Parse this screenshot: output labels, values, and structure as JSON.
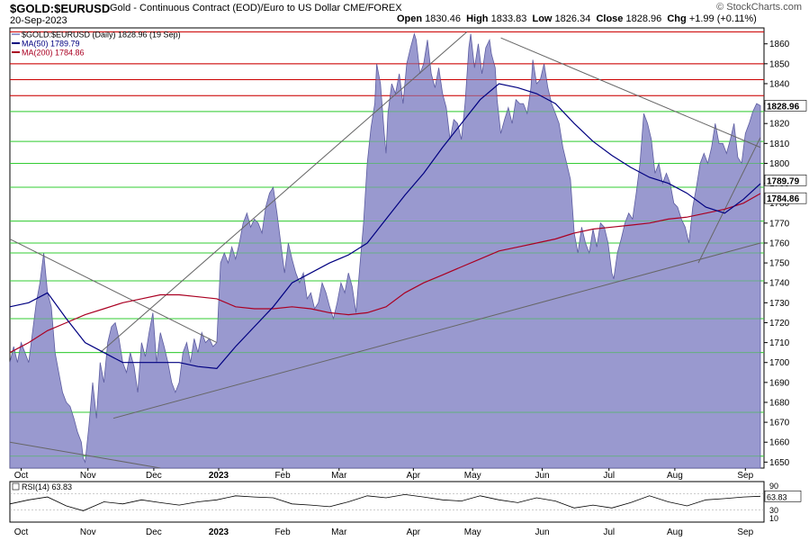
{
  "header": {
    "symbol": "$GOLD:$EURUSD",
    "description": "Gold - Continuous Contract (EOD)/Euro to US Dollar  CME/FOREX",
    "date": "20-Sep-2023",
    "watermark": "© StockCharts.com",
    "open_label": "Open",
    "open": "1830.46",
    "high_label": "High",
    "high": "1833.83",
    "low_label": "Low",
    "low": "1826.34",
    "close_label": "Close",
    "close": "1828.96",
    "chg_label": "Chg",
    "chg": "+1.99 (+0.11%)"
  },
  "legend": [
    {
      "text": "$GOLD:$EURUSD (Daily) 1828.96 (19 Sep)",
      "color": "#9999cc"
    },
    {
      "text": "MA(50) 1789.79",
      "color": "#000080"
    },
    {
      "text": "MA(200) 1784.86",
      "color": "#aa0022"
    }
  ],
  "rsi_label": "RSI(14) 63.83",
  "colors": {
    "area": "#9393cc",
    "area_line": "#5c5ca0",
    "ma50": "#000080",
    "ma200": "#aa0022",
    "green_line": "#33cc33",
    "red_line": "#cc0000",
    "trend": "#666666"
  },
  "chart_data": {
    "type": "area",
    "title": "$GOLD:$EURUSD",
    "ylim": [
      1647,
      1868
    ],
    "y_ticks": [
      "1650",
      "1660",
      "1670",
      "1680",
      "1690",
      "1700",
      "1710",
      "1720",
      "1730",
      "1740",
      "1750",
      "1760",
      "1770",
      "1780",
      "1790",
      "1800",
      "1810",
      "1820",
      "1830",
      "1840",
      "1850",
      "1860"
    ],
    "x_labels": [
      "Oct",
      "Nov",
      "Dec",
      "2023",
      "Feb",
      "Mar",
      "Apr",
      "May",
      "Jun",
      "Jul",
      "Aug",
      "Sep"
    ],
    "x_label_days": [
      12,
      83,
      153,
      222,
      290,
      350,
      429,
      492,
      566,
      637,
      707,
      782
    ],
    "price_series": {
      "name": "$GOLD:$EURUSD (Daily)",
      "points": [
        [
          0,
          1700
        ],
        [
          4,
          1708
        ],
        [
          8,
          1700
        ],
        [
          12,
          1710
        ],
        [
          16,
          1705
        ],
        [
          20,
          1700
        ],
        [
          24,
          1715
        ],
        [
          28,
          1730
        ],
        [
          32,
          1740
        ],
        [
          36,
          1755
        ],
        [
          40,
          1735
        ],
        [
          44,
          1728
        ],
        [
          48,
          1705
        ],
        [
          52,
          1695
        ],
        [
          56,
          1685
        ],
        [
          60,
          1680
        ],
        [
          64,
          1678
        ],
        [
          68,
          1672
        ],
        [
          72,
          1665
        ],
        [
          76,
          1660
        ],
        [
          78,
          1652
        ],
        [
          80,
          1650
        ],
        [
          84,
          1668
        ],
        [
          88,
          1690
        ],
        [
          92,
          1672
        ],
        [
          96,
          1700
        ],
        [
          100,
          1690
        ],
        [
          104,
          1710
        ],
        [
          108,
          1718
        ],
        [
          112,
          1720
        ],
        [
          116,
          1712
        ],
        [
          120,
          1700
        ],
        [
          124,
          1695
        ],
        [
          128,
          1705
        ],
        [
          132,
          1698
        ],
        [
          136,
          1685
        ],
        [
          140,
          1710
        ],
        [
          144,
          1703
        ],
        [
          148,
          1715
        ],
        [
          152,
          1725
        ],
        [
          156,
          1700
        ],
        [
          160,
          1715
        ],
        [
          164,
          1708
        ],
        [
          168,
          1700
        ],
        [
          172,
          1690
        ],
        [
          176,
          1685
        ],
        [
          180,
          1690
        ],
        [
          184,
          1705
        ],
        [
          188,
          1710
        ],
        [
          192,
          1700
        ],
        [
          196,
          1712
        ],
        [
          200,
          1705
        ],
        [
          204,
          1715
        ],
        [
          208,
          1710
        ],
        [
          212,
          1712
        ],
        [
          216,
          1708
        ],
        [
          220,
          1710
        ],
        [
          224,
          1750
        ],
        [
          228,
          1755
        ],
        [
          232,
          1750
        ],
        [
          236,
          1758
        ],
        [
          240,
          1752
        ],
        [
          244,
          1760
        ],
        [
          248,
          1770
        ],
        [
          252,
          1775
        ],
        [
          256,
          1768
        ],
        [
          260,
          1772
        ],
        [
          264,
          1770
        ],
        [
          268,
          1765
        ],
        [
          272,
          1778
        ],
        [
          276,
          1785
        ],
        [
          280,
          1788
        ],
        [
          284,
          1775
        ],
        [
          288,
          1760
        ],
        [
          292,
          1745
        ],
        [
          296,
          1760
        ],
        [
          300,
          1752
        ],
        [
          304,
          1745
        ],
        [
          308,
          1740
        ],
        [
          312,
          1745
        ],
        [
          316,
          1732
        ],
        [
          320,
          1735
        ],
        [
          324,
          1727
        ],
        [
          328,
          1730
        ],
        [
          332,
          1740
        ],
        [
          336,
          1735
        ],
        [
          340,
          1728
        ],
        [
          344,
          1722
        ],
        [
          348,
          1730
        ],
        [
          352,
          1740
        ],
        [
          356,
          1735
        ],
        [
          360,
          1745
        ],
        [
          364,
          1738
        ],
        [
          368,
          1725
        ],
        [
          372,
          1748
        ],
        [
          376,
          1770
        ],
        [
          380,
          1800
        ],
        [
          384,
          1818
        ],
        [
          388,
          1830
        ],
        [
          390,
          1850
        ],
        [
          394,
          1840
        ],
        [
          398,
          1815
        ],
        [
          400,
          1805
        ],
        [
          402,
          1825
        ],
        [
          406,
          1840
        ],
        [
          410,
          1835
        ],
        [
          414,
          1845
        ],
        [
          418,
          1830
        ],
        [
          422,
          1850
        ],
        [
          426,
          1858
        ],
        [
          430,
          1865
        ],
        [
          432,
          1862
        ],
        [
          436,
          1845
        ],
        [
          440,
          1850
        ],
        [
          444,
          1862
        ],
        [
          448,
          1845
        ],
        [
          452,
          1838
        ],
        [
          456,
          1848
        ],
        [
          460,
          1835
        ],
        [
          464,
          1828
        ],
        [
          468,
          1812
        ],
        [
          472,
          1822
        ],
        [
          476,
          1820
        ],
        [
          480,
          1812
        ],
        [
          484,
          1830
        ],
        [
          488,
          1858
        ],
        [
          490,
          1865
        ],
        [
          494,
          1848
        ],
        [
          498,
          1860
        ],
        [
          502,
          1845
        ],
        [
          506,
          1858
        ],
        [
          510,
          1862
        ],
        [
          512,
          1855
        ],
        [
          516,
          1848
        ],
        [
          518,
          1832
        ],
        [
          522,
          1815
        ],
        [
          526,
          1822
        ],
        [
          530,
          1828
        ],
        [
          534,
          1820
        ],
        [
          538,
          1832
        ],
        [
          542,
          1830
        ],
        [
          546,
          1830
        ],
        [
          550,
          1825
        ],
        [
          554,
          1838
        ],
        [
          556,
          1852
        ],
        [
          560,
          1840
        ],
        [
          564,
          1842
        ],
        [
          568,
          1850
        ],
        [
          572,
          1838
        ],
        [
          576,
          1830
        ],
        [
          580,
          1825
        ],
        [
          584,
          1820
        ],
        [
          588,
          1808
        ],
        [
          592,
          1800
        ],
        [
          596,
          1792
        ],
        [
          600,
          1765
        ],
        [
          604,
          1755
        ],
        [
          608,
          1768
        ],
        [
          612,
          1760
        ],
        [
          616,
          1755
        ],
        [
          620,
          1767
        ],
        [
          624,
          1758
        ],
        [
          628,
          1770
        ],
        [
          632,
          1768
        ],
        [
          636,
          1760
        ],
        [
          640,
          1745
        ],
        [
          642,
          1742
        ],
        [
          646,
          1755
        ],
        [
          650,
          1762
        ],
        [
          654,
          1770
        ],
        [
          658,
          1775
        ],
        [
          662,
          1772
        ],
        [
          666,
          1785
        ],
        [
          670,
          1800
        ],
        [
          674,
          1825
        ],
        [
          678,
          1820
        ],
        [
          682,
          1812
        ],
        [
          686,
          1795
        ],
        [
          690,
          1800
        ],
        [
          694,
          1790
        ],
        [
          698,
          1795
        ],
        [
          702,
          1790
        ],
        [
          706,
          1780
        ],
        [
          710,
          1778
        ],
        [
          714,
          1772
        ],
        [
          718,
          1768
        ],
        [
          722,
          1760
        ],
        [
          726,
          1778
        ],
        [
          730,
          1788
        ],
        [
          734,
          1800
        ],
        [
          738,
          1805
        ],
        [
          742,
          1800
        ],
        [
          746,
          1808
        ],
        [
          750,
          1820
        ],
        [
          754,
          1810
        ],
        [
          758,
          1810
        ],
        [
          762,
          1805
        ],
        [
          766,
          1812
        ],
        [
          770,
          1820
        ],
        [
          774,
          1803
        ],
        [
          778,
          1800
        ],
        [
          782,
          1815
        ],
        [
          786,
          1820
        ],
        [
          790,
          1826
        ],
        [
          794,
          1830
        ],
        [
          798,
          1828.96
        ]
      ]
    },
    "ma50": {
      "name": "MA(50)",
      "points": [
        [
          0,
          1728
        ],
        [
          20,
          1730
        ],
        [
          40,
          1735
        ],
        [
          60,
          1722
        ],
        [
          80,
          1710
        ],
        [
          100,
          1705
        ],
        [
          120,
          1700
        ],
        [
          140,
          1700
        ],
        [
          160,
          1700
        ],
        [
          180,
          1700
        ],
        [
          200,
          1698
        ],
        [
          220,
          1697
        ],
        [
          240,
          1708
        ],
        [
          260,
          1718
        ],
        [
          280,
          1728
        ],
        [
          300,
          1740
        ],
        [
          320,
          1745
        ],
        [
          340,
          1750
        ],
        [
          360,
          1754
        ],
        [
          380,
          1760
        ],
        [
          400,
          1772
        ],
        [
          420,
          1784
        ],
        [
          440,
          1795
        ],
        [
          460,
          1808
        ],
        [
          480,
          1820
        ],
        [
          500,
          1832
        ],
        [
          520,
          1840
        ],
        [
          540,
          1838
        ],
        [
          560,
          1835
        ],
        [
          580,
          1830
        ],
        [
          600,
          1820
        ],
        [
          620,
          1811
        ],
        [
          640,
          1804
        ],
        [
          660,
          1798
        ],
        [
          680,
          1793
        ],
        [
          700,
          1790
        ],
        [
          720,
          1785
        ],
        [
          740,
          1778
        ],
        [
          760,
          1775
        ],
        [
          780,
          1782
        ],
        [
          798,
          1789.79
        ]
      ]
    },
    "ma200": {
      "name": "MA(200)",
      "points": [
        [
          0,
          1705
        ],
        [
          20,
          1710
        ],
        [
          40,
          1716
        ],
        [
          60,
          1720
        ],
        [
          80,
          1724
        ],
        [
          100,
          1727
        ],
        [
          120,
          1730
        ],
        [
          140,
          1732
        ],
        [
          160,
          1734
        ],
        [
          180,
          1734
        ],
        [
          200,
          1733
        ],
        [
          220,
          1732
        ],
        [
          240,
          1728
        ],
        [
          260,
          1727
        ],
        [
          280,
          1727
        ],
        [
          300,
          1728
        ],
        [
          320,
          1727
        ],
        [
          340,
          1725
        ],
        [
          360,
          1724
        ],
        [
          380,
          1725
        ],
        [
          400,
          1728
        ],
        [
          420,
          1735
        ],
        [
          440,
          1740
        ],
        [
          460,
          1744
        ],
        [
          480,
          1748
        ],
        [
          500,
          1752
        ],
        [
          520,
          1756
        ],
        [
          540,
          1758
        ],
        [
          560,
          1760
        ],
        [
          580,
          1762
        ],
        [
          600,
          1765
        ],
        [
          620,
          1767
        ],
        [
          640,
          1768
        ],
        [
          660,
          1769
        ],
        [
          680,
          1770
        ],
        [
          700,
          1772
        ],
        [
          720,
          1773
        ],
        [
          740,
          1775
        ],
        [
          760,
          1777
        ],
        [
          780,
          1780
        ],
        [
          798,
          1784.86
        ]
      ]
    },
    "horizontal_levels_green": [
      1653,
      1675,
      1705,
      1722,
      1741,
      1755,
      1760,
      1771,
      1788,
      1800,
      1811,
      1826
    ],
    "horizontal_levels_red": [
      1834,
      1842,
      1850,
      1866
    ],
    "trendlines": [
      [
        [
          0,
          1762
        ],
        [
          220,
          1710
        ]
      ],
      [
        [
          0,
          1660
        ],
        [
          160,
          1647
        ]
      ],
      [
        [
          96,
          1705
        ],
        [
          486,
          1866
        ]
      ],
      [
        [
          110,
          1672
        ],
        [
          798,
          1760
        ]
      ],
      [
        [
          522,
          1863
        ],
        [
          798,
          1808
        ]
      ],
      [
        [
          732,
          1750
        ],
        [
          798,
          1813
        ]
      ]
    ],
    "last_price_tag": "1828.96",
    "ma50_tag": "1789.79",
    "ma200_tag": "1784.86",
    "rsi": {
      "name": "RSI(14)",
      "ylim": [
        0,
        100
      ],
      "ticks": [
        "90",
        "70",
        "30",
        "10"
      ],
      "last": "63.83",
      "points": [
        [
          0,
          45
        ],
        [
          20,
          55
        ],
        [
          40,
          62
        ],
        [
          60,
          40
        ],
        [
          78,
          28
        ],
        [
          100,
          50
        ],
        [
          120,
          45
        ],
        [
          140,
          55
        ],
        [
          160,
          48
        ],
        [
          180,
          42
        ],
        [
          200,
          50
        ],
        [
          220,
          55
        ],
        [
          240,
          65
        ],
        [
          260,
          62
        ],
        [
          280,
          60
        ],
        [
          300,
          45
        ],
        [
          320,
          42
        ],
        [
          340,
          38
        ],
        [
          360,
          50
        ],
        [
          380,
          65
        ],
        [
          400,
          60
        ],
        [
          420,
          68
        ],
        [
          440,
          62
        ],
        [
          460,
          55
        ],
        [
          480,
          52
        ],
        [
          500,
          65
        ],
        [
          520,
          55
        ],
        [
          540,
          48
        ],
        [
          560,
          60
        ],
        [
          580,
          52
        ],
        [
          600,
          35
        ],
        [
          620,
          42
        ],
        [
          640,
          35
        ],
        [
          660,
          48
        ],
        [
          680,
          65
        ],
        [
          700,
          50
        ],
        [
          720,
          40
        ],
        [
          740,
          55
        ],
        [
          760,
          58
        ],
        [
          780,
          62
        ],
        [
          798,
          63.83
        ]
      ]
    }
  }
}
